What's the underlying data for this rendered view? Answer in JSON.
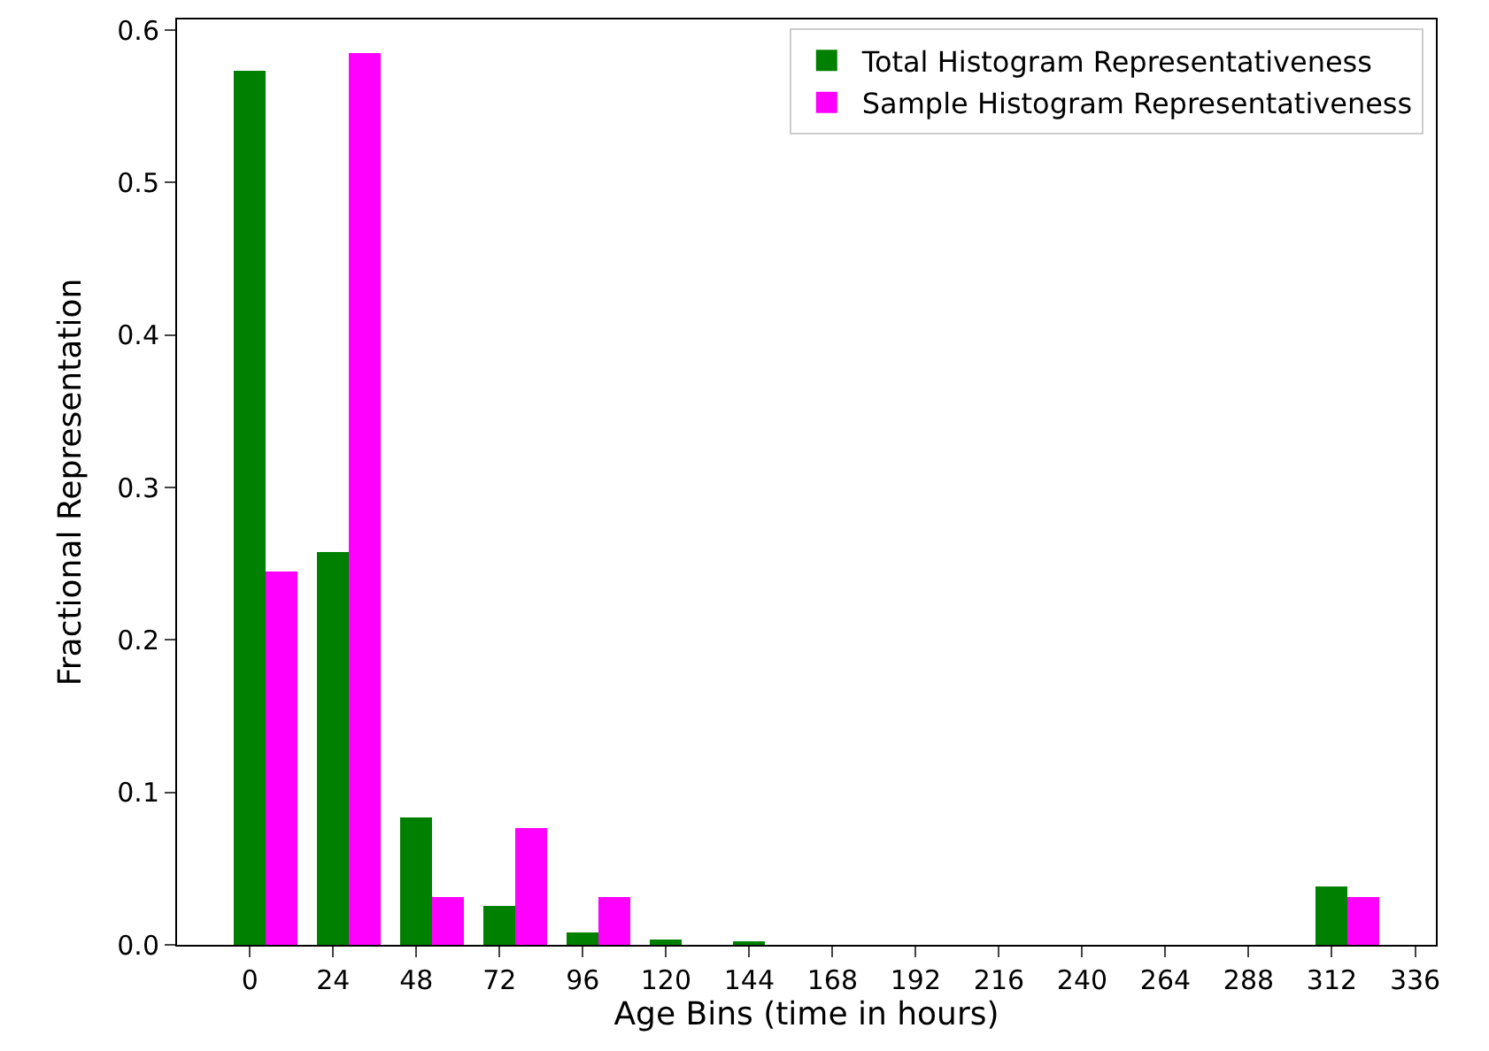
{
  "chart_data": {
    "type": "bar",
    "xlabel": "Age Bins (time in hours)",
    "ylabel": "Fractional Representation",
    "x": [
      0,
      24,
      48,
      72,
      96,
      120,
      144,
      168,
      192,
      216,
      240,
      264,
      288,
      312
    ],
    "series": [
      {
        "name": "Total Histogram Representativeness",
        "color": "#008000",
        "values": [
          0.573,
          0.258,
          0.083,
          0.026,
          0.008,
          0.004,
          0.002,
          0,
          0,
          0,
          0,
          0,
          0,
          0.038
        ]
      },
      {
        "name": "Sample Histogram Representativeness",
        "color": "#ff00ff",
        "values": [
          0.245,
          0.585,
          0.031,
          0.077,
          0.031,
          0,
          0,
          0,
          0,
          0,
          0,
          0,
          0,
          0.031
        ]
      }
    ],
    "xlim": [
      -21,
      342
    ],
    "xticks": [
      0,
      24,
      48,
      72,
      96,
      120,
      144,
      168,
      192,
      216,
      240,
      264,
      288,
      312,
      336
    ],
    "ylim": [
      0,
      0.607
    ],
    "yticks": [
      {
        "value": 0,
        "label": "0.0"
      },
      0.1,
      0.2,
      0.3,
      0.4,
      0.5,
      0.6
    ],
    "legend": "top right"
  }
}
